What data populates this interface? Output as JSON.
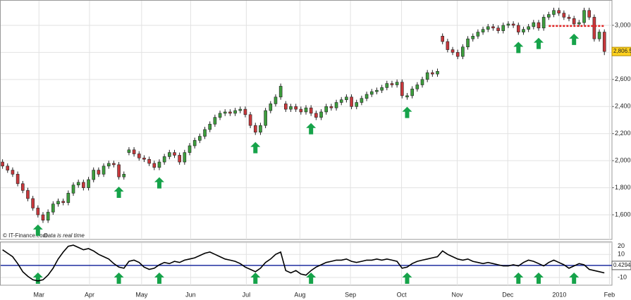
{
  "chart_data": [
    {
      "type": "candlestick",
      "watermark": "© IT-Finance.com",
      "note": "Data is real time",
      "up_color": "#3d9e3d",
      "down_color": "#c8383c",
      "signal_color": "#16a34a",
      "open": [
        1990,
        1960,
        1930,
        1900,
        1830,
        1780,
        1720,
        1650,
        1600,
        1560,
        1620,
        1680,
        1700,
        1690,
        1760,
        1820,
        1840,
        1800,
        1860,
        1930,
        1900,
        1960,
        1980,
        1970,
        1880,
        2060,
        2080,
        2050,
        2020,
        2010,
        1980,
        1950,
        1990,
        2030,
        2060,
        2040,
        1990,
        2060,
        2110,
        2150,
        2180,
        2230,
        2270,
        2320,
        2350,
        2360,
        2350,
        2370,
        2380,
        2340,
        2260,
        2210,
        2260,
        2370,
        2420,
        2470,
        2420,
        2380,
        2400,
        2380,
        2360,
        2390,
        2350,
        2320,
        2360,
        2400,
        2390,
        2430,
        2450,
        2470,
        2400,
        2430,
        2460,
        2490,
        2510,
        2520,
        2540,
        2570,
        2560,
        2580,
        2470,
        2480,
        2530,
        2560,
        2600,
        2650,
        2640,
        2920,
        2880,
        2820,
        2800,
        2770,
        2840,
        2900,
        2920,
        2950,
        2970,
        2990,
        2980,
        2960,
        3000,
        3010,
        3000,
        2950,
        2970,
        2990,
        3020,
        2980,
        3060,
        3080,
        3110,
        3090,
        3060,
        3050,
        3010,
        3020,
        3110,
        3060,
        2900,
        2950
      ],
      "high": [
        2010,
        1980,
        1950,
        1920,
        1850,
        1800,
        1740,
        1670,
        1620,
        1640,
        1700,
        1720,
        1720,
        1780,
        1840,
        1860,
        1860,
        1880,
        1950,
        1950,
        1980,
        2000,
        2000,
        1990,
        1920,
        2100,
        2100,
        2070,
        2040,
        2030,
        2000,
        2010,
        2050,
        2080,
        2080,
        2060,
        2080,
        2130,
        2170,
        2200,
        2250,
        2290,
        2340,
        2370,
        2380,
        2380,
        2390,
        2400,
        2400,
        2360,
        2280,
        2280,
        2390,
        2440,
        2490,
        2570,
        2440,
        2420,
        2420,
        2400,
        2410,
        2410,
        2370,
        2380,
        2420,
        2420,
        2450,
        2470,
        2490,
        2490,
        2450,
        2480,
        2510,
        2530,
        2540,
        2560,
        2590,
        2590,
        2600,
        2600,
        2500,
        2550,
        2580,
        2620,
        2670,
        2670,
        2680,
        2940,
        2900,
        2840,
        2820,
        2860,
        2920,
        2940,
        2970,
        2990,
        3010,
        3010,
        3000,
        3020,
        3030,
        3030,
        3020,
        2990,
        3010,
        3040,
        3040,
        3080,
        3100,
        3130,
        3130,
        3110,
        3080,
        3070,
        3040,
        3130,
        3130,
        3080,
        2970,
        2970
      ],
      "low": [
        1940,
        1910,
        1880,
        1810,
        1760,
        1700,
        1630,
        1580,
        1540,
        1540,
        1600,
        1660,
        1670,
        1670,
        1740,
        1800,
        1780,
        1780,
        1840,
        1880,
        1880,
        1940,
        1950,
        1860,
        1860,
        2040,
        2030,
        2000,
        1990,
        1960,
        1930,
        1930,
        1970,
        2010,
        2020,
        1970,
        1970,
        2040,
        2090,
        2130,
        2160,
        2210,
        2250,
        2300,
        2330,
        2330,
        2330,
        2350,
        2320,
        2240,
        2190,
        2190,
        2240,
        2350,
        2400,
        2450,
        2360,
        2360,
        2360,
        2340,
        2340,
        2330,
        2300,
        2300,
        2340,
        2370,
        2370,
        2410,
        2430,
        2380,
        2380,
        2410,
        2440,
        2470,
        2490,
        2500,
        2520,
        2540,
        2540,
        2460,
        2450,
        2460,
        2510,
        2540,
        2580,
        2620,
        2620,
        2860,
        2800,
        2780,
        2750,
        2750,
        2820,
        2880,
        2900,
        2930,
        2950,
        2960,
        2940,
        2940,
        2980,
        2980,
        2930,
        2930,
        2950,
        2970,
        2960,
        2960,
        3040,
        3060,
        3070,
        3040,
        3030,
        2990,
        2990,
        3000,
        3040,
        2880,
        2880,
        2780
      ],
      "close": [
        1960,
        1930,
        1900,
        1830,
        1780,
        1720,
        1650,
        1600,
        1560,
        1620,
        1680,
        1700,
        1690,
        1760,
        1820,
        1840,
        1800,
        1860,
        1930,
        1900,
        1960,
        1980,
        1970,
        1880,
        1900,
        2080,
        2050,
        2020,
        2010,
        1980,
        1950,
        1990,
        2030,
        2060,
        2040,
        1990,
        2060,
        2110,
        2150,
        2180,
        2230,
        2270,
        2320,
        2350,
        2360,
        2350,
        2370,
        2380,
        2340,
        2260,
        2210,
        2260,
        2370,
        2420,
        2470,
        2550,
        2380,
        2400,
        2380,
        2360,
        2390,
        2350,
        2320,
        2360,
        2400,
        2390,
        2430,
        2450,
        2470,
        2400,
        2430,
        2460,
        2490,
        2510,
        2520,
        2540,
        2570,
        2560,
        2580,
        2480,
        2480,
        2530,
        2560,
        2600,
        2650,
        2640,
        2660,
        2880,
        2820,
        2800,
        2770,
        2840,
        2900,
        2920,
        2950,
        2970,
        2990,
        2980,
        2960,
        3000,
        3010,
        3000,
        2950,
        2970,
        2990,
        3020,
        2980,
        3060,
        3080,
        3110,
        3090,
        3060,
        3050,
        3010,
        3020,
        3110,
        3060,
        2900,
        2950,
        2806.5
      ],
      "last_price": {
        "value": 2806.5,
        "label": "2,806.5"
      },
      "hline": {
        "value": 2995,
        "from": 108,
        "to": 119,
        "color": "#e02020"
      },
      "signals": [
        7,
        23,
        31,
        50,
        61,
        80,
        102,
        106,
        113
      ],
      "xlim": [
        -0.5,
        120.5
      ],
      "xticks": [
        {
          "value": 7.2,
          "label": "Mar"
        },
        {
          "value": 17.2,
          "label": "Apr"
        },
        {
          "value": 27.5,
          "label": "May"
        },
        {
          "value": 37.2,
          "label": "Jun"
        },
        {
          "value": 48.2,
          "label": "Jul"
        },
        {
          "value": 58.8,
          "label": "Aug"
        },
        {
          "value": 68.8,
          "label": "Sep"
        },
        {
          "value": 78.9,
          "label": "Oct"
        },
        {
          "value": 89.9,
          "label": "Nov"
        },
        {
          "value": 99.9,
          "label": "Dec"
        },
        {
          "value": 110.1,
          "label": "2010"
        },
        {
          "value": 120.0,
          "label": "Feb"
        }
      ],
      "ylim": [
        1418,
        3187
      ],
      "yticks": [
        {
          "value": 1600,
          "label": "1,600"
        },
        {
          "value": 1800,
          "label": "1,800"
        },
        {
          "value": 2000,
          "label": "2,000"
        },
        {
          "value": 2200,
          "label": "2,200"
        },
        {
          "value": 2400,
          "label": "2,400"
        },
        {
          "value": 2600,
          "label": "2,600"
        },
        {
          "value": 2800,
          "label": "2,800"
        },
        {
          "value": 3000,
          "label": "3,000"
        }
      ],
      "grid": true
    },
    {
      "type": "line",
      "color": "#000000",
      "values": [
        14,
        11,
        8,
        2,
        -5,
        -9,
        -12,
        -13,
        -12,
        -8,
        -2,
        6,
        12,
        17,
        18,
        16,
        14,
        15,
        13,
        10,
        8,
        6,
        2,
        -1,
        -2,
        4,
        5,
        3,
        -1,
        -3,
        -2,
        1,
        3,
        2,
        4,
        3,
        5,
        6,
        7,
        9,
        11,
        12,
        10,
        8,
        6,
        5,
        4,
        2,
        -1,
        -3,
        -5,
        -2,
        3,
        6,
        10,
        12,
        -4,
        -6,
        -4,
        -7,
        -8,
        -4,
        -1,
        1,
        3,
        4,
        5,
        5,
        6,
        4,
        3,
        4,
        5,
        5,
        6,
        5,
        6,
        5,
        4,
        -2,
        -1,
        2,
        4,
        5,
        6,
        7,
        8,
        13,
        10,
        8,
        6,
        5,
        6,
        4,
        3,
        2,
        3,
        2,
        1,
        0,
        0,
        1,
        0,
        3,
        5,
        4,
        2,
        0,
        3,
        5,
        3,
        1,
        -2,
        0,
        2,
        1,
        -3,
        -4,
        -5,
        -6
      ],
      "reference_line": 0.4294,
      "reference_color": "#1f2fa0",
      "ylim": [
        -16.7,
        20.5
      ],
      "yticks": [
        20,
        10,
        -10
      ],
      "grid": true
    }
  ]
}
